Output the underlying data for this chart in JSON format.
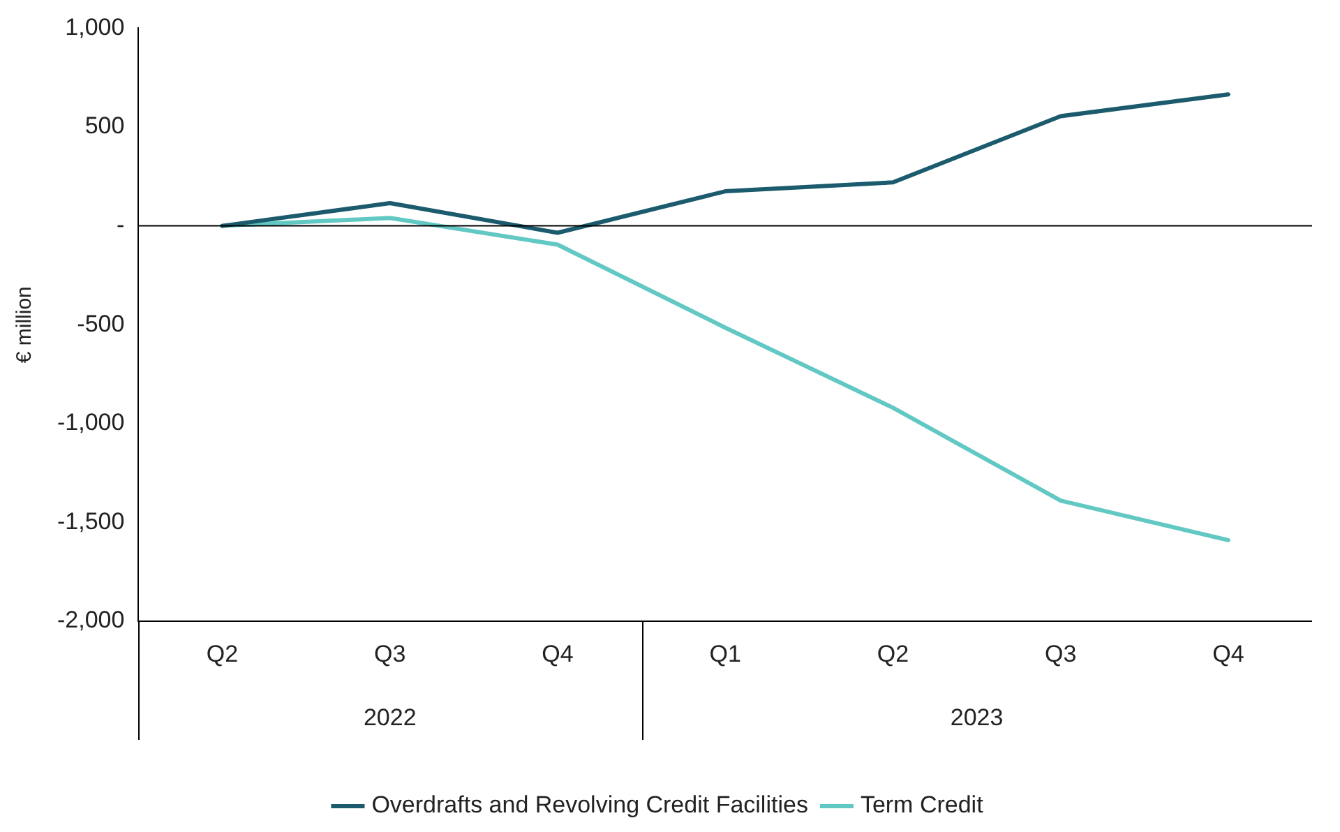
{
  "chart_data": {
    "type": "line",
    "ylabel": "€ million",
    "categories": [
      "Q2",
      "Q3",
      "Q4",
      "Q1",
      "Q2",
      "Q3",
      "Q4"
    ],
    "series": [
      {
        "name": "Overdrafts and Revolving Credit Facilities",
        "color": "#1b5b6d",
        "values": [
          0,
          115,
          -35,
          175,
          220,
          555,
          665
        ]
      },
      {
        "name": "Term Credit",
        "color": "#62c8c3",
        "values": [
          0,
          40,
          -95,
          -515,
          -920,
          -1390,
          -1590
        ]
      }
    ],
    "ylim": [
      -2000,
      1000
    ],
    "yticks": [
      {
        "value": -2000,
        "label": "-2,000"
      },
      {
        "value": -1500,
        "label": "-1,500"
      },
      {
        "value": -1000,
        "label": "-1,000"
      },
      {
        "value": -500,
        "label": "-500"
      },
      {
        "value": 0,
        "label": "-"
      },
      {
        "value": 500,
        "label": "500"
      },
      {
        "value": 1000,
        "label": "1,000"
      }
    ],
    "ref_lines": [
      {
        "axis": "y",
        "value": 0,
        "color": "#000000"
      }
    ],
    "annotations": [
      "2022",
      "2023"
    ],
    "grid": false,
    "legend": "bottom",
    "marker": "none",
    "line_style": "solid"
  }
}
